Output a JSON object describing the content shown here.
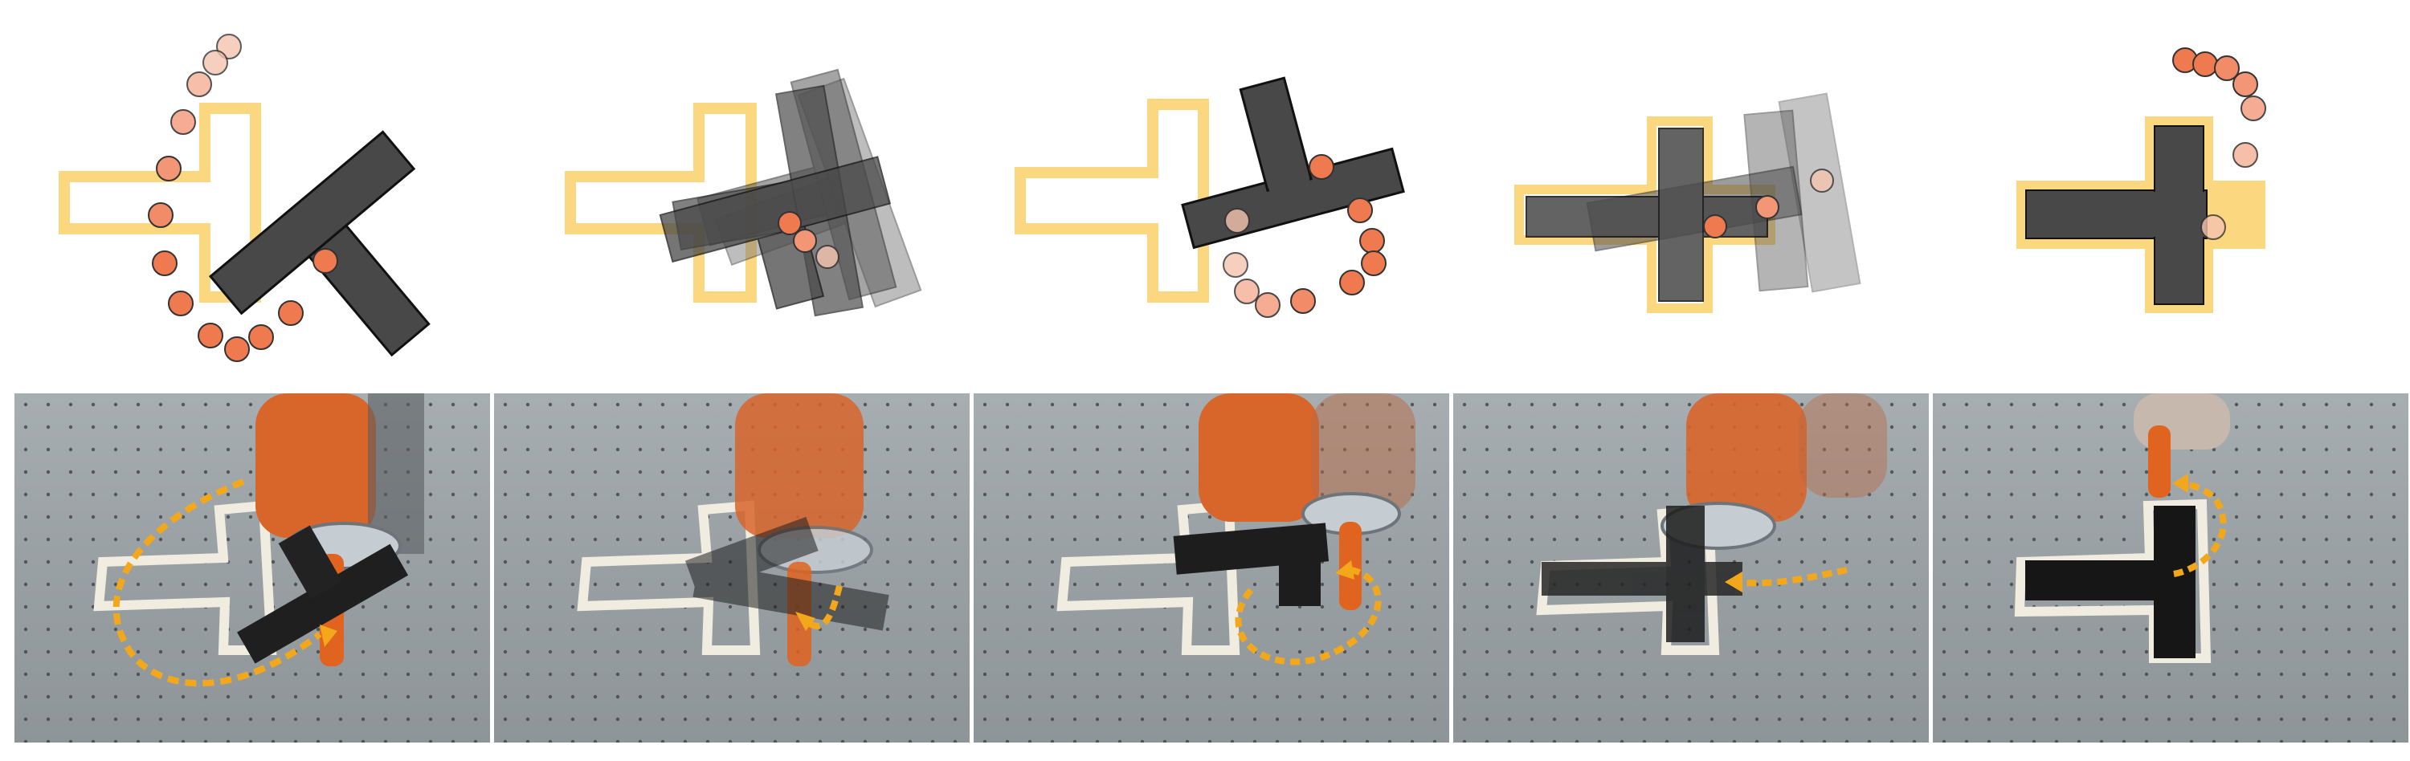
{
  "figure": {
    "panel_count": 5,
    "colors": {
      "target_outline": "#fbd77f",
      "tblock": "#484848",
      "tblock_ghost": "#8a8a8a",
      "contact_point": "#f07a4f",
      "contact_point_faded": "#f6b49b",
      "trajectory_arrow": "#f3a81b",
      "table_surface": "#9ba2a6",
      "tape": "#f1ece0"
    },
    "panels": [
      {
        "step": 1,
        "description_icon": "t-block-rotated"
      },
      {
        "step": 2,
        "description_icon": "t-block-sweeping"
      },
      {
        "step": 3,
        "description_icon": "t-block-pushed"
      },
      {
        "step": 4,
        "description_icon": "t-block-aligning"
      },
      {
        "step": 5,
        "description_icon": "t-block-aligned"
      }
    ]
  }
}
